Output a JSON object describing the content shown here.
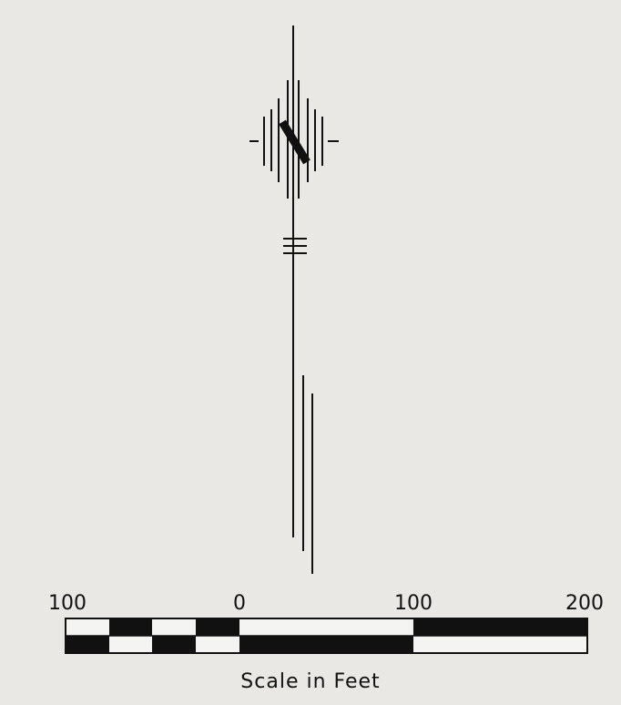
{
  "scale_bar": {
    "title": "Scale in Feet",
    "ticks": [
      {
        "label": "100"
      },
      {
        "label": "0"
      },
      {
        "label": "100"
      },
      {
        "label": "200"
      }
    ]
  },
  "colors": {
    "background": "#e9e8e4",
    "ink": "#111111",
    "paper": "#f4f4f2"
  }
}
